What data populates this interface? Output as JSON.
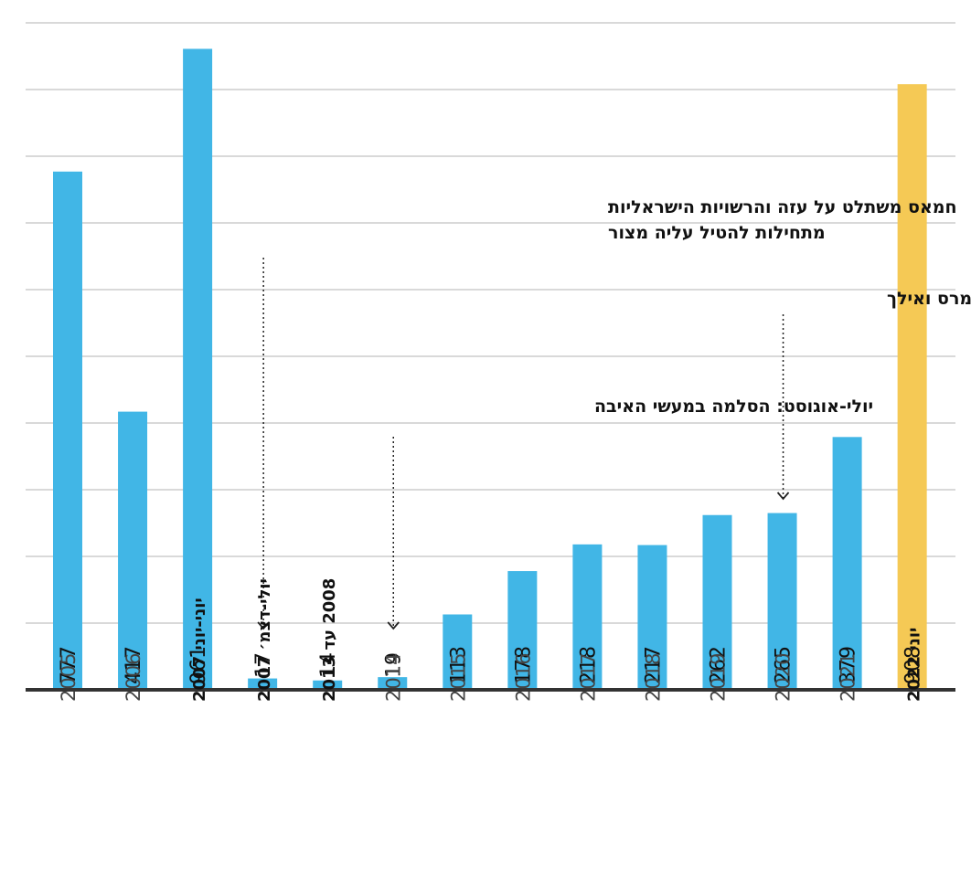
{
  "chart_data": {
    "type": "bar",
    "categories": [
      "2005",
      "2006",
      "יוני-יוני 2007",
      "יולי-דצמ׳ 2007",
      "2008 עד 2013",
      "2014",
      "2015",
      "2016",
      "2017",
      "2018",
      "2019",
      "2020",
      "2021",
      "יוני 2022"
    ],
    "values": [
      777,
      417,
      961,
      17,
      14,
      19,
      113,
      178,
      218,
      217,
      262,
      265,
      379,
      908
    ],
    "highlight_index": 13,
    "bold_categories": [
      2,
      3,
      4,
      13
    ],
    "ylim": [
      0,
      1000
    ],
    "grid": true,
    "gridline_values": [
      100,
      200,
      300,
      400,
      500,
      600,
      700,
      800,
      900,
      1000
    ],
    "colors": {
      "bar": "#41b6e6",
      "highlight": "#f5c955",
      "grid": "#d9d9d9",
      "baseline": "#333333"
    },
    "annotations": [
      {
        "lines": [
          "חמאס משתלט על עזה והרשויות הישראליות",
          "מתחילות להטיל עליה מצור"
        ],
        "target_index": 3
      },
      {
        "lines": [
          "יולי-אוגוסט: הסלמה במעשי האיבה"
        ],
        "target_index": 5
      },
      {
        "lines": [
          "הגבלות קורונה מוטלות ממרס ואילך"
        ],
        "target_index": 11
      }
    ]
  }
}
